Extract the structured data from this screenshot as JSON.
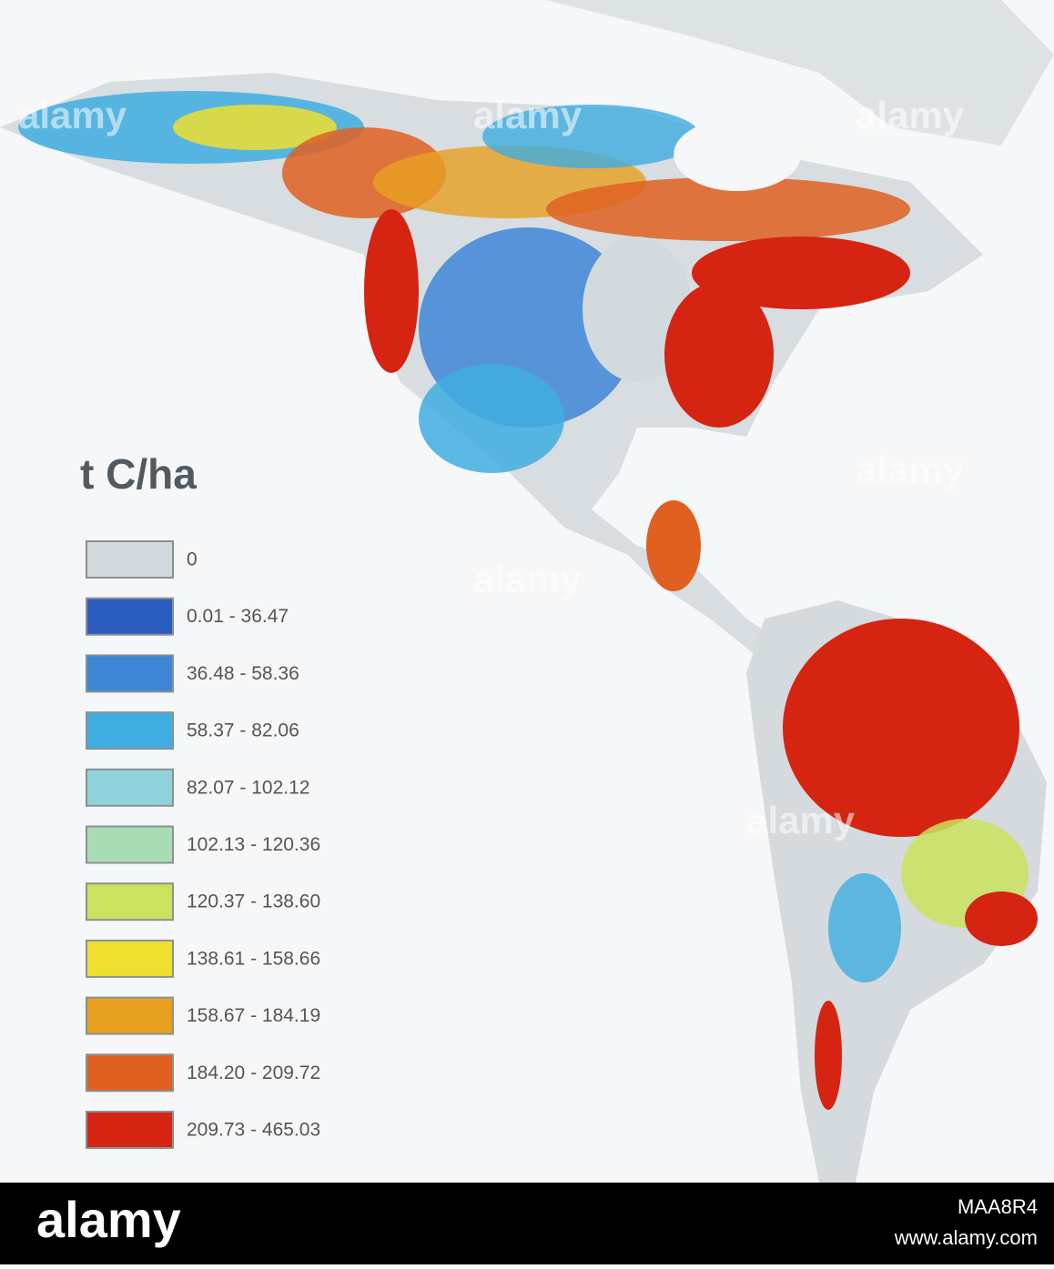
{
  "legend": {
    "title": "t C/ha",
    "items": [
      {
        "label": "0",
        "color": "#d3dade"
      },
      {
        "label": "0.01 - 36.47",
        "color": "#2b5dbf"
      },
      {
        "label": "36.48 - 58.36",
        "color": "#3f86d6"
      },
      {
        "label": "58.37 - 82.06",
        "color": "#3fade0"
      },
      {
        "label": "82.07 - 102.12",
        "color": "#8fd2da"
      },
      {
        "label": "102.13 - 120.36",
        "color": "#a9dcb2"
      },
      {
        "label": "120.37 - 138.60",
        "color": "#c9e35e"
      },
      {
        "label": "138.61 - 158.66",
        "color": "#efdf2f"
      },
      {
        "label": "158.67 - 184.19",
        "color": "#e7a020"
      },
      {
        "label": "184.20 - 209.72",
        "color": "#df6020"
      },
      {
        "label": "209.73 - 465.03",
        "color": "#d62412"
      }
    ]
  },
  "watermark": "alamy",
  "footer": {
    "logo": "alamy",
    "image_id": "MAA8R4",
    "url": "www.alamy.com"
  }
}
